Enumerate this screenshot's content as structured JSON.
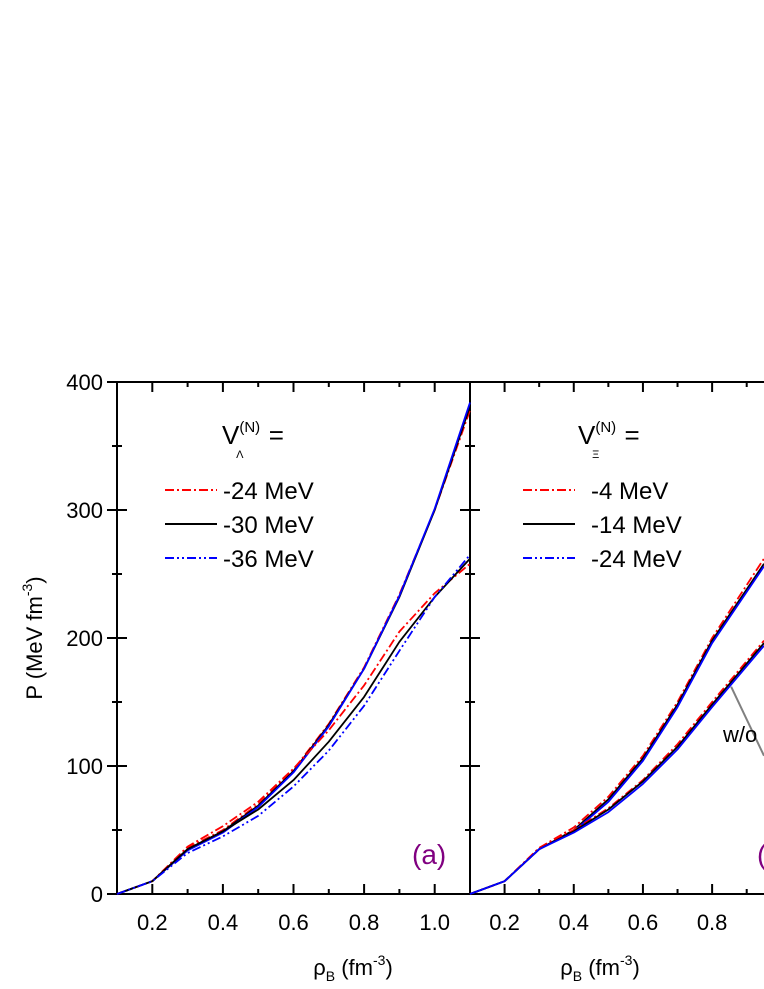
{
  "chart_data": [
    {
      "type": "line",
      "panel_label": "(a)",
      "panel_label_color": "#800080",
      "xlabel": "ρ_B (fm^-3)",
      "ylabel": "P (MeV fm^-3)",
      "xlim": [
        0.1,
        1.1
      ],
      "ylim": [
        0,
        400
      ],
      "xticks": [
        "0.2",
        "0.4",
        "0.6",
        "0.8",
        "1.0"
      ],
      "yticks": [
        "0",
        "100",
        "200",
        "300",
        "400"
      ],
      "legend_title": "V_Λ^(N) =",
      "legend": [
        {
          "label": "-24 MeV",
          "color": "#ff0000",
          "dash": "dash-dot"
        },
        {
          "label": "-30 MeV",
          "color": "#000000",
          "dash": "solid"
        },
        {
          "label": "-36 MeV",
          "color": "#0000ff",
          "dash": "dash-dot-dot"
        }
      ],
      "series": [
        {
          "group": "upper",
          "color": "#ff0000",
          "dash": "dash-dot",
          "x": [
            0.1,
            0.2,
            0.3,
            0.4,
            0.5,
            0.6,
            0.7,
            0.8,
            0.9,
            1.0,
            1.1
          ],
          "y": [
            0,
            10,
            36,
            50,
            70,
            97,
            133,
            177,
            234,
            300,
            378
          ]
        },
        {
          "group": "upper",
          "color": "#000000",
          "dash": "solid",
          "x": [
            0.1,
            0.2,
            0.3,
            0.4,
            0.5,
            0.6,
            0.7,
            0.8,
            0.9,
            1.0,
            1.1
          ],
          "y": [
            0,
            10,
            35,
            49,
            69,
            96,
            132,
            176,
            232,
            300,
            381
          ]
        },
        {
          "group": "upper",
          "color": "#0000ff",
          "dash": "solid",
          "x": [
            0.1,
            0.2,
            0.3,
            0.4,
            0.5,
            0.6,
            0.7,
            0.8,
            0.9,
            1.0,
            1.1
          ],
          "y": [
            0,
            10,
            34,
            48,
            68,
            95,
            131,
            176,
            233,
            301,
            384
          ]
        },
        {
          "group": "lower",
          "color": "#ff0000",
          "dash": "dash-dot",
          "x": [
            0.1,
            0.2,
            0.3,
            0.4,
            0.5,
            0.6,
            0.7,
            0.8,
            0.9,
            1.0,
            1.1
          ],
          "y": [
            0,
            10,
            37,
            53,
            72,
            98,
            128,
            163,
            205,
            235,
            258
          ]
        },
        {
          "group": "lower",
          "color": "#000000",
          "dash": "solid",
          "x": [
            0.1,
            0.2,
            0.3,
            0.4,
            0.5,
            0.6,
            0.7,
            0.8,
            0.9,
            1.0,
            1.1
          ],
          "y": [
            0,
            10,
            35,
            49,
            66,
            89,
            119,
            154,
            197,
            232,
            262
          ]
        },
        {
          "group": "lower",
          "color": "#0000ff",
          "dash": "dash-dot-dot",
          "x": [
            0.1,
            0.2,
            0.3,
            0.4,
            0.5,
            0.6,
            0.7,
            0.8,
            0.9,
            1.0,
            1.1
          ],
          "y": [
            0,
            10,
            32,
            45,
            61,
            84,
            112,
            147,
            190,
            232,
            265
          ]
        }
      ]
    },
    {
      "type": "line",
      "panel_label": "(",
      "panel_label_color": "#800080",
      "xlabel": "ρ_B (fm^-3)",
      "xlim": [
        0.1,
        0.95
      ],
      "ylim": [
        0,
        400
      ],
      "xticks": [
        "0.2",
        "0.4",
        "0.6",
        "0.8"
      ],
      "legend_title": "V_Ξ^(N) =",
      "legend": [
        {
          "label": "-4 MeV",
          "color": "#ff0000",
          "dash": "dash-dot"
        },
        {
          "label": "-14 MeV",
          "color": "#000000",
          "dash": "solid"
        },
        {
          "label": "-24 MeV",
          "color": "#0000ff",
          "dash": "dash-dot-dot"
        }
      ],
      "annotation": "w/o",
      "series": [
        {
          "group": "upper",
          "color": "#ff0000",
          "dash": "dash-dot",
          "x": [
            0.1,
            0.2,
            0.3,
            0.4,
            0.5,
            0.6,
            0.7,
            0.8,
            0.95
          ],
          "y": [
            0,
            10,
            36,
            52,
            76,
            108,
            150,
            200,
            262
          ]
        },
        {
          "group": "upper",
          "color": "#000000",
          "dash": "solid",
          "x": [
            0.1,
            0.2,
            0.3,
            0.4,
            0.5,
            0.6,
            0.7,
            0.8,
            0.95
          ],
          "y": [
            0,
            10,
            35,
            50,
            74,
            106,
            148,
            198,
            258
          ]
        },
        {
          "group": "upper",
          "color": "#0000ff",
          "dash": "solid",
          "x": [
            0.1,
            0.2,
            0.3,
            0.4,
            0.5,
            0.6,
            0.7,
            0.8,
            0.95
          ],
          "y": [
            0,
            10,
            35,
            49,
            72,
            104,
            146,
            196,
            256
          ]
        },
        {
          "group": "lower",
          "color": "#ff0000",
          "dash": "dash-dot",
          "x": [
            0.1,
            0.2,
            0.3,
            0.4,
            0.5,
            0.6,
            0.7,
            0.8,
            0.95
          ],
          "y": [
            0,
            10,
            36,
            50,
            67,
            89,
            117,
            150,
            198
          ]
        },
        {
          "group": "lower",
          "color": "#000000",
          "dash": "solid",
          "x": [
            0.1,
            0.2,
            0.3,
            0.4,
            0.5,
            0.6,
            0.7,
            0.8,
            0.95
          ],
          "y": [
            0,
            10,
            35,
            49,
            66,
            88,
            115,
            148,
            196
          ]
        },
        {
          "group": "lower",
          "color": "#0000ff",
          "dash": "solid",
          "x": [
            0.1,
            0.2,
            0.3,
            0.4,
            0.5,
            0.6,
            0.7,
            0.8,
            0.95
          ],
          "y": [
            0,
            10,
            35,
            48,
            64,
            86,
            113,
            146,
            194
          ]
        }
      ]
    }
  ]
}
